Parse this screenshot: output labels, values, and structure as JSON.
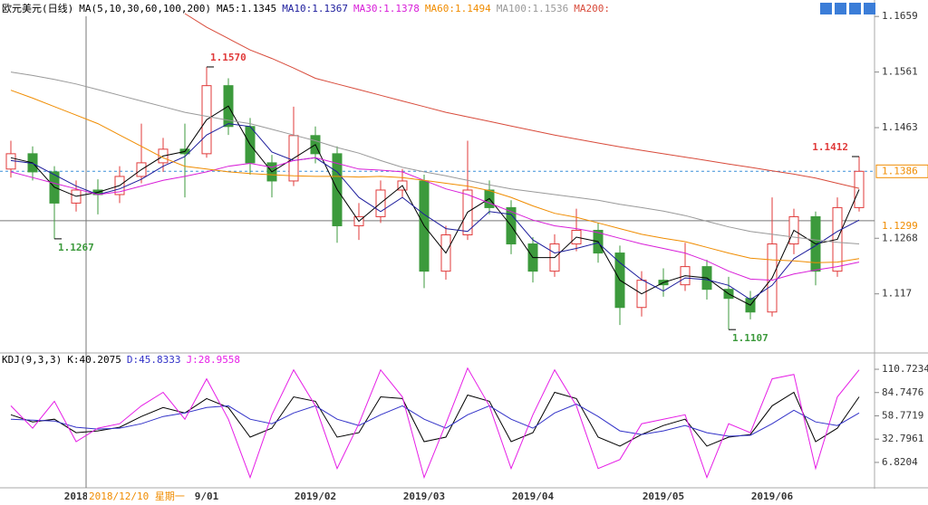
{
  "chart_data": [
    {
      "type": "candlestick",
      "title": "欧元美元(日线)",
      "indicator": "MA(5,10,30,60,100,200)",
      "categories": [
        null,
        null,
        null,
        "2018",
        null,
        null,
        null,
        null,
        null,
        "9/01",
        null,
        null,
        null,
        null,
        "2019/02",
        null,
        null,
        null,
        null,
        "2019/03",
        null,
        null,
        null,
        null,
        "2019/04",
        null,
        null,
        null,
        null,
        null,
        "2019/05",
        null,
        null,
        null,
        null,
        "2019/06",
        null,
        null,
        null,
        null
      ],
      "open": [
        1.139,
        1.1417,
        1.1385,
        1.133,
        1.1353,
        1.1345,
        1.1377,
        1.1401,
        1.1425,
        1.1417,
        1.1537,
        1.1465,
        1.1401,
        1.1369,
        1.1449,
        1.1417,
        1.129,
        1.1306,
        1.1353,
        1.1369,
        1.121,
        1.1274,
        1.1353,
        1.1322,
        1.1258,
        1.121,
        1.1258,
        1.1282,
        1.1242,
        1.1146,
        1.1194,
        1.1186,
        1.1218,
        1.1178,
        1.1162,
        1.1138,
        1.1258,
        1.1306,
        1.121,
        1.1322
      ],
      "high": [
        1.144,
        1.143,
        1.1395,
        1.137,
        1.1372,
        1.1395,
        1.147,
        1.1445,
        1.147,
        1.157,
        1.155,
        1.148,
        1.1415,
        1.15,
        1.1465,
        1.143,
        1.133,
        1.137,
        1.139,
        1.138,
        1.129,
        1.144,
        1.137,
        1.1335,
        1.127,
        1.1275,
        1.132,
        1.1295,
        1.1255,
        1.121,
        1.1215,
        1.126,
        1.123,
        1.12,
        1.1175,
        1.134,
        1.132,
        1.1315,
        1.134,
        1.1412
      ],
      "low": [
        1.1375,
        1.137,
        1.1267,
        1.1315,
        1.131,
        1.133,
        1.1365,
        1.1385,
        1.134,
        1.141,
        1.145,
        1.138,
        1.134,
        1.136,
        1.14,
        1.126,
        1.1265,
        1.1295,
        1.134,
        1.118,
        1.1195,
        1.1265,
        1.131,
        1.124,
        1.119,
        1.12,
        1.1245,
        1.1225,
        1.1115,
        1.113,
        1.1165,
        1.1175,
        1.116,
        1.1107,
        1.1125,
        1.113,
        1.124,
        1.1185,
        1.12,
        1.1315
      ],
      "close": [
        1.1417,
        1.1385,
        1.133,
        1.1353,
        1.1345,
        1.1377,
        1.1401,
        1.1425,
        1.1417,
        1.1537,
        1.1465,
        1.1401,
        1.1369,
        1.1449,
        1.1417,
        1.129,
        1.1306,
        1.1353,
        1.1369,
        1.121,
        1.1274,
        1.1353,
        1.1322,
        1.1258,
        1.121,
        1.1258,
        1.1282,
        1.1242,
        1.1146,
        1.1194,
        1.1186,
        1.1218,
        1.1178,
        1.1162,
        1.1138,
        1.1258,
        1.1306,
        1.121,
        1.1322,
        1.1386
      ],
      "up_color": "#e03a3a",
      "down_color": "#3c9a3c",
      "series": [
        {
          "name": "MA5:1.1345",
          "color": "#000000",
          "values": [
            1.141,
            1.1401,
            1.1358,
            1.1342,
            1.1349,
            1.1361,
            1.1389,
            1.1413,
            1.1421,
            1.1477,
            1.1501,
            1.1433,
            1.1385,
            1.1409,
            1.1433,
            1.1354,
            1.1298,
            1.133,
            1.1361,
            1.129,
            1.1242,
            1.1314,
            1.1338,
            1.129,
            1.1234,
            1.1234,
            1.127,
            1.1262,
            1.1194,
            1.117,
            1.119,
            1.1202,
            1.1198,
            1.117,
            1.115,
            1.1198,
            1.1282,
            1.1258,
            1.1266,
            1.1354
          ]
        },
        {
          "name": "MA10:1.1367",
          "color": "#1c1c9c",
          "values": [
            1.1405,
            1.14,
            1.138,
            1.136,
            1.1345,
            1.1355,
            1.1372,
            1.1395,
            1.1412,
            1.145,
            1.147,
            1.1465,
            1.142,
            1.1405,
            1.141,
            1.1385,
            1.134,
            1.1315,
            1.134,
            1.131,
            1.1285,
            1.128,
            1.1315,
            1.131,
            1.1265,
            1.1242,
            1.125,
            1.126,
            1.1225,
            1.1195,
            1.1175,
            1.1198,
            1.1195,
            1.1185,
            1.116,
            1.1185,
            1.1232,
            1.1255,
            1.128,
            1.13
          ]
        },
        {
          "name": "MA30:1.1378",
          "color": "#d81ed8",
          "values": [
            1.1385,
            1.1375,
            1.1365,
            1.1355,
            1.1345,
            1.135,
            1.136,
            1.137,
            1.1377,
            1.1385,
            1.1395,
            1.14,
            1.1393,
            1.1405,
            1.141,
            1.14,
            1.139,
            1.1388,
            1.1385,
            1.137,
            1.1355,
            1.1345,
            1.133,
            1.1315,
            1.13,
            1.129,
            1.1285,
            1.1278,
            1.1268,
            1.1258,
            1.125,
            1.1242,
            1.1228,
            1.121,
            1.1196,
            1.1194,
            1.1205,
            1.1212,
            1.1218,
            1.1226
          ]
        },
        {
          "name": "MA60:1.1494",
          "color": "#f08c00",
          "values": [
            1.1529,
            1.1515,
            1.15,
            1.1485,
            1.147,
            1.145,
            1.143,
            1.141,
            1.1395,
            1.139,
            1.1385,
            1.1382,
            1.138,
            1.1378,
            1.1377,
            1.1377,
            1.1376,
            1.1377,
            1.1375,
            1.137,
            1.1365,
            1.136,
            1.1352,
            1.134,
            1.1325,
            1.1312,
            1.1305,
            1.1295,
            1.1285,
            1.1275,
            1.1268,
            1.1262,
            1.1252,
            1.1242,
            1.1233,
            1.123,
            1.1228,
            1.1225,
            1.1226,
            1.1232
          ]
        },
        {
          "name": "MA100:1.1536",
          "color": "#999999",
          "values": [
            1.1561,
            1.1555,
            1.1548,
            1.154,
            1.153,
            1.152,
            1.151,
            1.15,
            1.149,
            1.1483,
            1.1476,
            1.147,
            1.146,
            1.145,
            1.144,
            1.1428,
            1.1418,
            1.1405,
            1.1393,
            1.1385,
            1.1378,
            1.137,
            1.1362,
            1.1355,
            1.135,
            1.1345,
            1.134,
            1.1335,
            1.1328,
            1.1322,
            1.1316,
            1.1308,
            1.1298,
            1.1288,
            1.128,
            1.1275,
            1.127,
            1.1265,
            1.1261,
            1.1258
          ]
        },
        {
          "name": "MA200:",
          "color": "#d84a3a",
          "values": [
            null,
            null,
            null,
            null,
            null,
            null,
            null,
            null,
            1.1664,
            1.164,
            1.162,
            1.16,
            1.1585,
            1.1568,
            1.155,
            1.154,
            1.153,
            1.152,
            1.151,
            1.15,
            1.149,
            1.1482,
            1.1474,
            1.1466,
            1.1458,
            1.145,
            1.1443,
            1.1436,
            1.1429,
            1.1423,
            1.1417,
            1.1411,
            1.1405,
            1.1399,
            1.1393,
            1.1387,
            1.1381,
            1.1374,
            1.1365,
            1.1356
          ]
        }
      ],
      "ylim": [
        1.1069,
        1.1688
      ],
      "yticks": [
        1.1659,
        1.1561,
        1.1463,
        1.1268,
        1.117
      ],
      "last_price": 1.1386,
      "crosshair": {
        "price": 1.1299,
        "label": "2018/12/10 星期一"
      },
      "annotations": [
        {
          "text": "1.1570",
          "value": 1.157
        },
        {
          "text": "1.1267",
          "value": 1.1267
        },
        {
          "text": "1.1107",
          "value": 1.1107
        },
        {
          "text": "1.1412",
          "value": 1.1412
        }
      ]
    },
    {
      "type": "line",
      "title": "KDJ(9,3,3)",
      "series": [
        {
          "name": "K:40.2075",
          "color": "#000000",
          "values": [
            60,
            52,
            55,
            40,
            42,
            46,
            58,
            68,
            62,
            78,
            68,
            35,
            45,
            80,
            75,
            35,
            40,
            80,
            78,
            30,
            35,
            82,
            75,
            30,
            40,
            85,
            78,
            35,
            25,
            38,
            48,
            55,
            25,
            35,
            38,
            70,
            85,
            30,
            45,
            80
          ]
        },
        {
          "name": "D:45.8333",
          "color": "#3232c8",
          "values": [
            55,
            54,
            53,
            46,
            44,
            45,
            50,
            58,
            62,
            68,
            70,
            55,
            50,
            62,
            70,
            55,
            48,
            60,
            70,
            55,
            45,
            60,
            70,
            55,
            45,
            62,
            72,
            58,
            42,
            38,
            42,
            48,
            40,
            36,
            37,
            50,
            65,
            52,
            48,
            62
          ]
        },
        {
          "name": "J:28.9558",
          "color": "#e61ee6",
          "values": [
            70,
            45,
            75,
            30,
            45,
            50,
            70,
            85,
            55,
            100,
            55,
            -10,
            60,
            110,
            70,
            0,
            50,
            110,
            80,
            -10,
            50,
            112,
            70,
            0,
            60,
            110,
            70,
            0,
            10,
            50,
            55,
            60,
            -10,
            50,
            40,
            100,
            105,
            0,
            80,
            110
          ]
        }
      ],
      "ylim": [
        -20.5,
        126.9
      ],
      "yticks": [
        110.7234,
        84.7476,
        58.7719,
        32.7961,
        6.8204
      ]
    }
  ]
}
